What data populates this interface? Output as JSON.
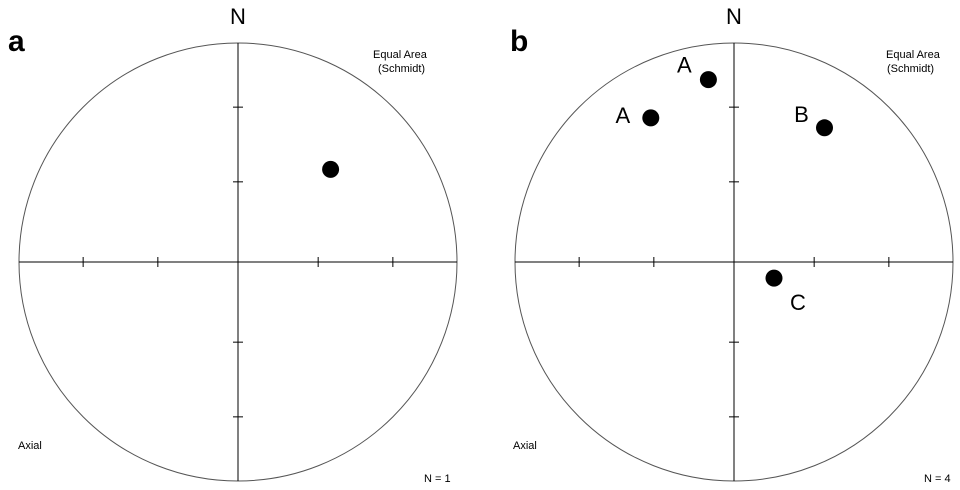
{
  "colors": {
    "background": "#ffffff",
    "ink": "#000000",
    "net_outline": "#555555"
  },
  "panels": [
    {
      "letter": "a",
      "north": "N",
      "projection_line1": "Equal Area",
      "projection_line2": "(Schmidt)",
      "data_type": "Axial",
      "count": "N = 1",
      "points": [
        {
          "label": "",
          "trend_deg": 45,
          "plunge_deg": 40
        }
      ]
    },
    {
      "letter": "b",
      "north": "N",
      "projection_line1": "Equal Area",
      "projection_line2": "(Schmidt)",
      "data_type": "Axial",
      "count": "N = 4",
      "points": [
        {
          "label": "A",
          "trend_deg": 330,
          "plunge_deg": 25
        },
        {
          "label": "A",
          "trend_deg": 352,
          "plunge_deg": 17
        },
        {
          "label": "B",
          "trend_deg": 34,
          "plunge_deg": 27
        },
        {
          "label": "C",
          "trend_deg": 112,
          "plunge_deg": 74
        }
      ]
    }
  ]
}
